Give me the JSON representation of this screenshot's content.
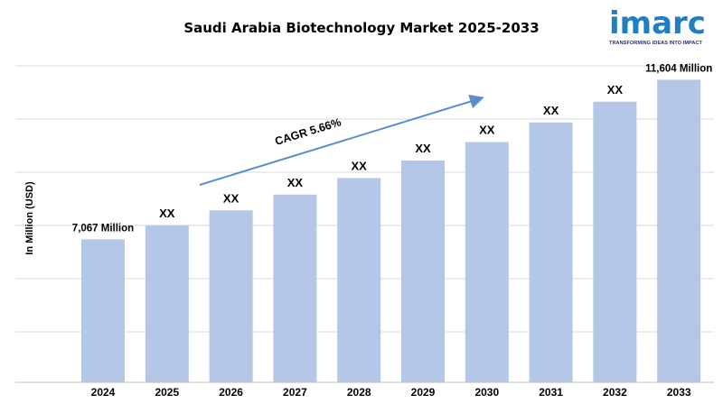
{
  "page": {
    "title": "Saudi Arabia Biotechnology Market 2025-2033"
  },
  "logo": {
    "word": "imarc",
    "tagline": "TRANSFORMING IDEAS INTO IMPACT"
  },
  "colors": {
    "bar": "#b4c7e7",
    "arrow": "#5b8fc6",
    "grid": "#d9d9d9",
    "text": "#000000"
  },
  "chart_data": {
    "type": "bar",
    "title": "Saudi Arabia Biotechnology Market 2025-2033",
    "xlabel": "",
    "ylabel": "In Million (USD)",
    "categories": [
      "2024",
      "2025",
      "2026",
      "2027",
      "2028",
      "2029",
      "2030",
      "2031",
      "2032",
      "2033"
    ],
    "values": [
      7067,
      7467,
      7890,
      8337,
      8809,
      9307,
      9834,
      10391,
      10980,
      11604
    ],
    "data_labels": [
      "7,067 Million",
      "XX",
      "XX",
      "XX",
      "XX",
      "XX",
      "XX",
      "XX",
      "XX",
      "11,604 Million"
    ],
    "ylim": [
      3000,
      12000
    ],
    "grid": true,
    "annotation": "CAGR 5.66%"
  }
}
